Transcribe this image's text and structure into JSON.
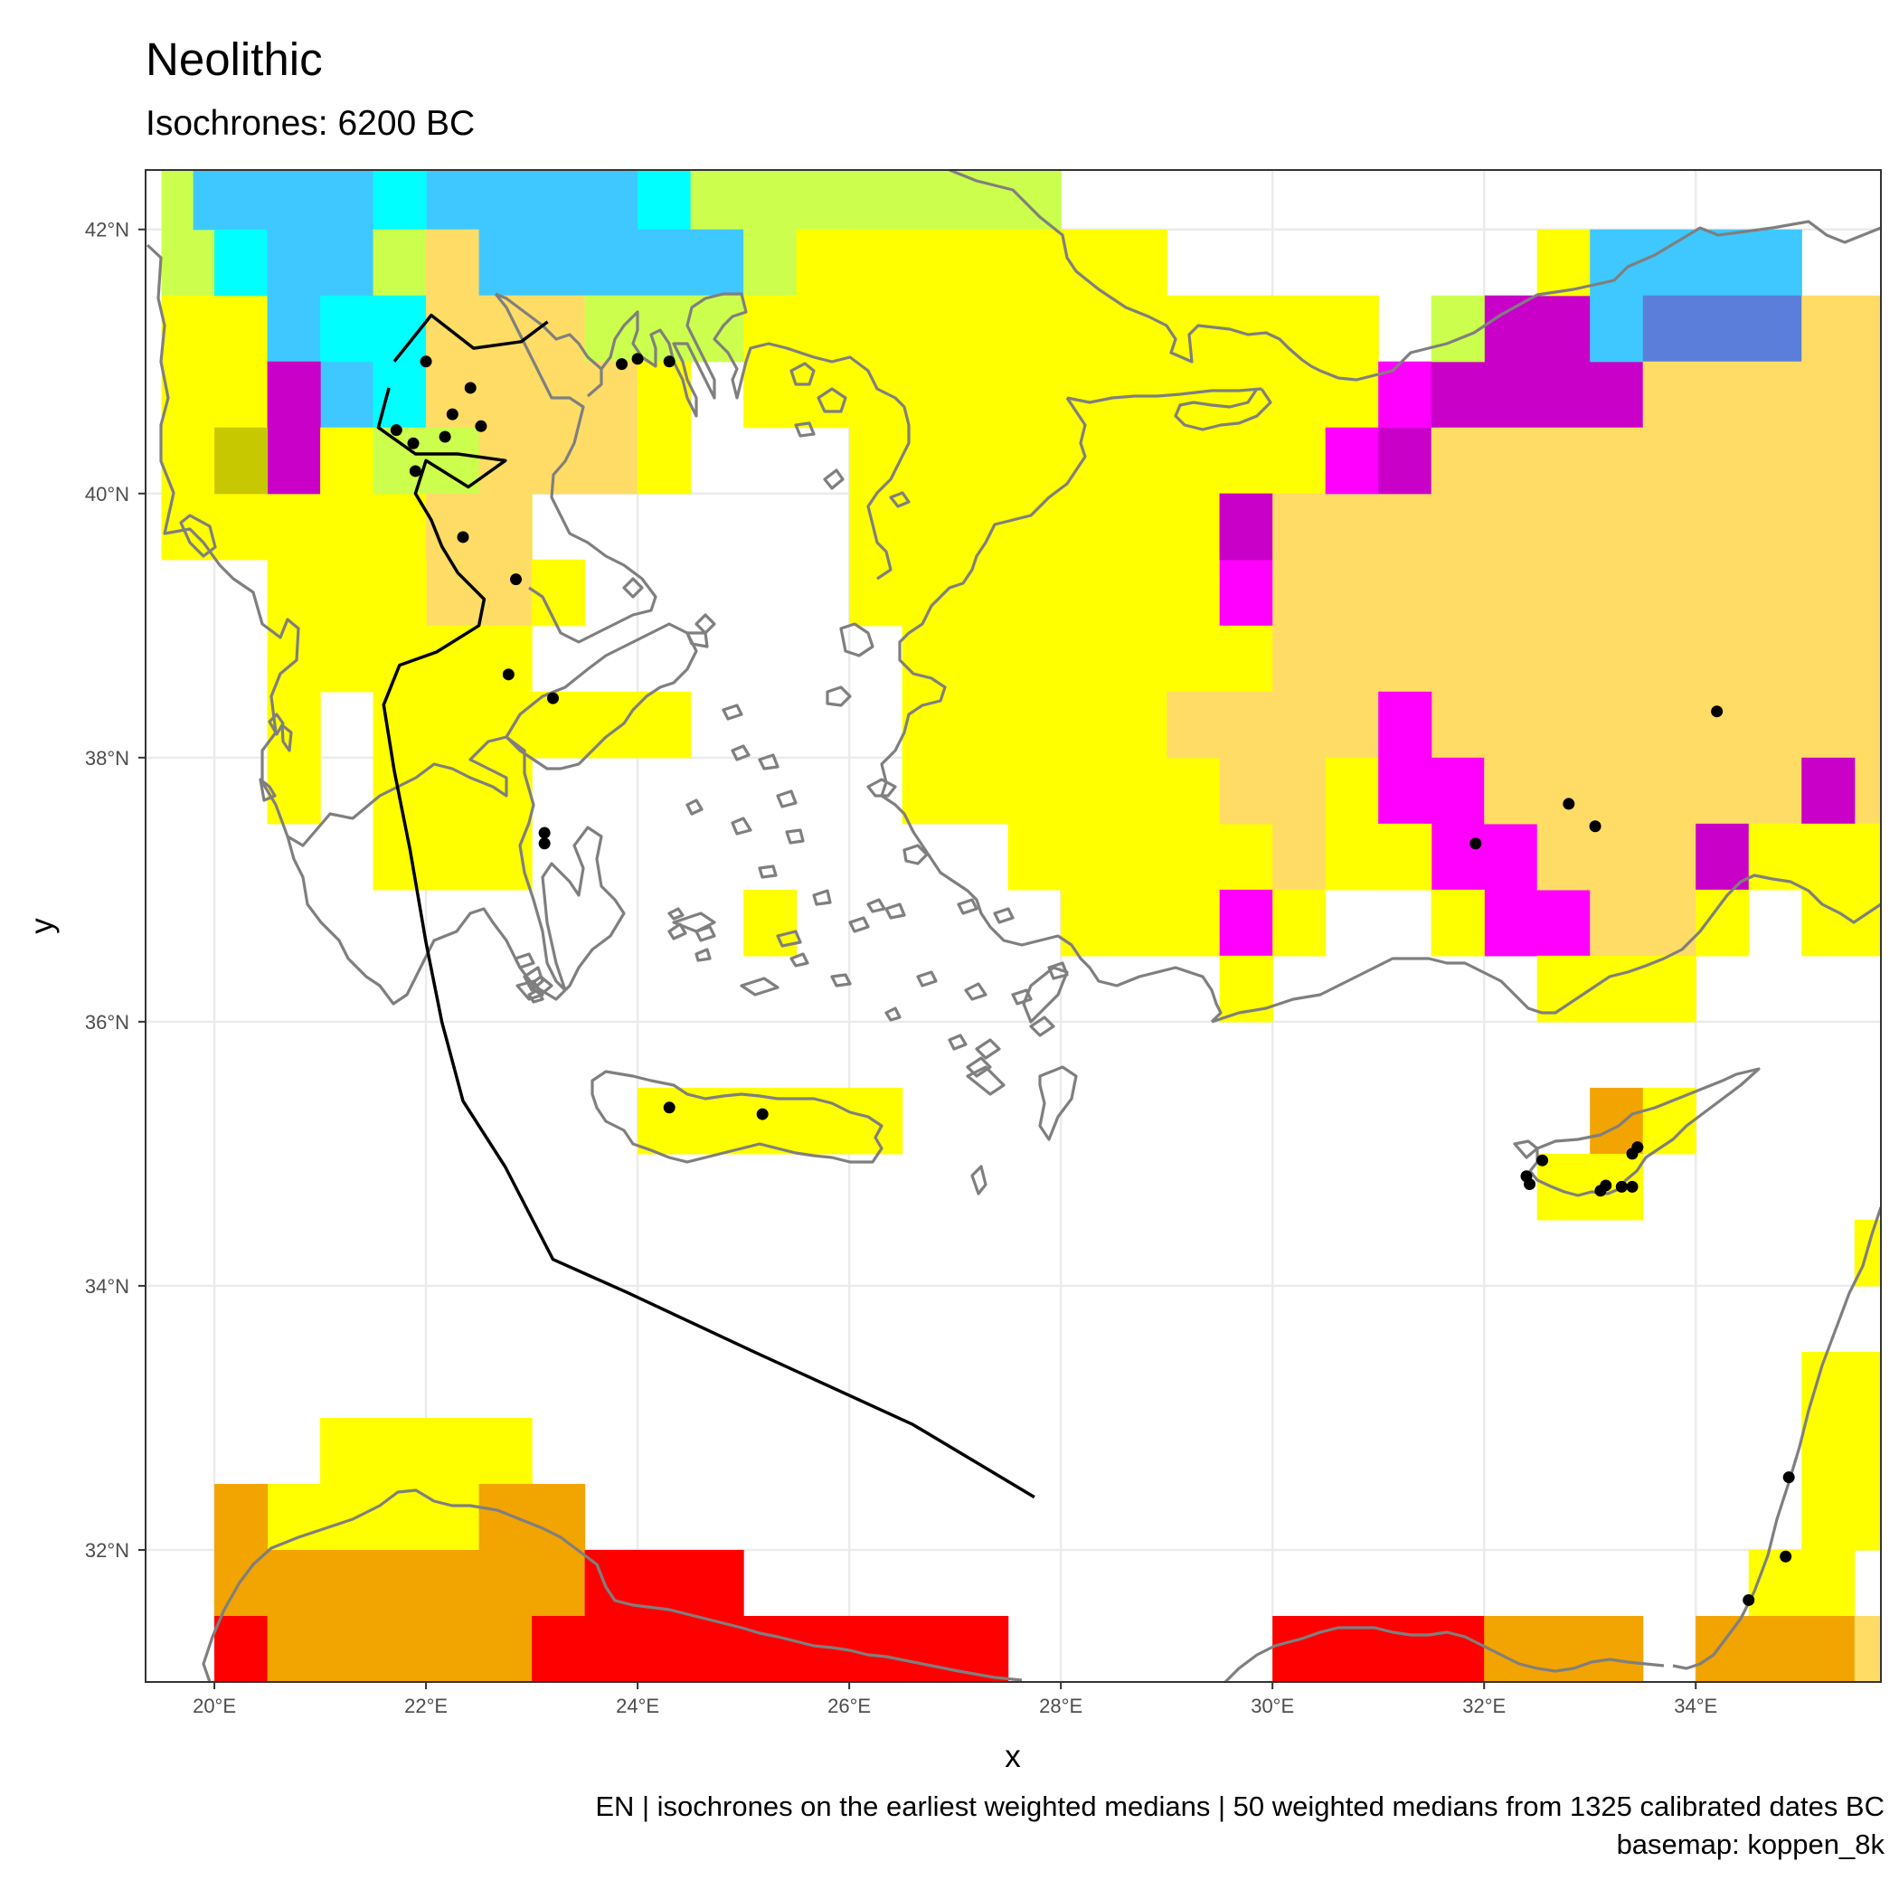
{
  "title": "Neolithic",
  "subtitle": "Isochrones: 6200 BC",
  "caption": {
    "line1": "EN | isochrones on the earliest weighted medians | 50 weighted medians from 1325 calibrated dates BC",
    "line2": "basemap: koppen_8k"
  },
  "axes": {
    "x_title": "x",
    "y_title": "y",
    "x_ticks": [
      "20°E",
      "22°E",
      "24°E",
      "26°E",
      "28°E",
      "30°E",
      "32°E",
      "34°E"
    ],
    "y_ticks": [
      "42°N",
      "40°N",
      "38°N",
      "36°N",
      "34°N",
      "32°N"
    ],
    "xlim": [
      19.35,
      35.75
    ],
    "ylim": [
      31.0,
      42.45
    ]
  },
  "colors": {
    "panel_border": "#333333",
    "grid": "#ebebeb",
    "coast": "#7f7f7f",
    "isochrone": "#000000",
    "sites": "#000000"
  },
  "chart_data": {
    "type": "heatmap",
    "cell_size_deg": 0.5,
    "legend": "none",
    "grid": true,
    "climate_colors": {
      "A": "#ff0000",
      "B": "#f2a400",
      "C": "#ffdc66",
      "D": "#ffff00",
      "E": "#ccff4d",
      "F": "#c8c800",
      "G": "#3fc8ff",
      "H": "#00ffff",
      "I": "#c800c8",
      "J": "#ff00ff",
      "K": "#5a7ed9"
    },
    "cells": [
      {
        "lon": 19.5,
        "lat": 42.0,
        "w": 0.5,
        "h": 0.5,
        "c": "E"
      },
      {
        "lon": 19.5,
        "lat": 41.5,
        "w": 1.0,
        "h": 0.5,
        "c": "E"
      },
      {
        "lon": 19.5,
        "lat": 40.0,
        "w": 1.0,
        "h": 1.5,
        "c": "D"
      },
      {
        "lon": 19.5,
        "lat": 39.5,
        "w": 3.5,
        "h": 0.5,
        "c": "D"
      },
      {
        "lon": 19.8,
        "lat": 42.0,
        "w": 2.2,
        "h": 0.5,
        "c": "G"
      },
      {
        "lon": 22.0,
        "lat": 42.0,
        "w": 2.0,
        "h": 0.5,
        "c": "G"
      },
      {
        "lon": 21.5,
        "lat": 42.0,
        "w": 0.5,
        "h": 0.5,
        "c": "H"
      },
      {
        "lon": 24.0,
        "lat": 42.0,
        "w": 0.5,
        "h": 0.5,
        "c": "H"
      },
      {
        "lon": 24.5,
        "lat": 42.0,
        "w": 3.5,
        "h": 0.5,
        "c": "E"
      },
      {
        "lon": 20.0,
        "lat": 41.5,
        "w": 0.5,
        "h": 0.5,
        "c": "H"
      },
      {
        "lon": 20.5,
        "lat": 41.0,
        "w": 0.5,
        "h": 1.0,
        "c": "G"
      },
      {
        "lon": 21.0,
        "lat": 41.5,
        "w": 0.5,
        "h": 0.5,
        "c": "G"
      },
      {
        "lon": 21.5,
        "lat": 41.5,
        "w": 0.5,
        "h": 0.5,
        "c": "E"
      },
      {
        "lon": 22.0,
        "lat": 41.5,
        "w": 0.5,
        "h": 0.5,
        "c": "C"
      },
      {
        "lon": 22.5,
        "lat": 41.5,
        "w": 2.5,
        "h": 0.5,
        "c": "G"
      },
      {
        "lon": 25.0,
        "lat": 41.5,
        "w": 0.5,
        "h": 0.5,
        "c": "E"
      },
      {
        "lon": 25.5,
        "lat": 41.5,
        "w": 2.5,
        "h": 0.5,
        "c": "D"
      },
      {
        "lon": 21.0,
        "lat": 40.5,
        "w": 0.5,
        "h": 1.0,
        "c": "G"
      },
      {
        "lon": 21.0,
        "lat": 41.0,
        "w": 1.0,
        "h": 0.5,
        "c": "H"
      },
      {
        "lon": 21.5,
        "lat": 40.5,
        "w": 0.5,
        "h": 0.5,
        "c": "H"
      },
      {
        "lon": 22.0,
        "lat": 40.5,
        "w": 1.5,
        "h": 1.0,
        "c": "C"
      },
      {
        "lon": 23.5,
        "lat": 41.0,
        "w": 1.5,
        "h": 0.5,
        "c": "E"
      },
      {
        "lon": 23.5,
        "lat": 40.5,
        "w": 1.0,
        "h": 0.5,
        "c": "C"
      },
      {
        "lon": 25.0,
        "lat": 40.5,
        "w": 3.0,
        "h": 1.0,
        "c": "D"
      },
      {
        "lon": 28.0,
        "lat": 40.5,
        "w": 1.0,
        "h": 1.0,
        "c": "D"
      },
      {
        "lon": 20.5,
        "lat": 40.0,
        "w": 0.5,
        "h": 1.0,
        "c": "I"
      },
      {
        "lon": 20.0,
        "lat": 40.0,
        "w": 0.5,
        "h": 0.5,
        "c": "F"
      },
      {
        "lon": 21.0,
        "lat": 40.0,
        "w": 0.5,
        "h": 0.5,
        "c": "D"
      },
      {
        "lon": 21.5,
        "lat": 40.0,
        "w": 1.0,
        "h": 0.5,
        "c": "E"
      },
      {
        "lon": 22.5,
        "lat": 40.0,
        "w": 1.5,
        "h": 0.5,
        "c": "C"
      },
      {
        "lon": 24.0,
        "lat": 40.0,
        "w": 0.5,
        "h": 1.0,
        "c": "D"
      },
      {
        "lon": 22.0,
        "lat": 39.0,
        "w": 1.0,
        "h": 1.0,
        "c": "C"
      },
      {
        "lon": 23.0,
        "lat": 39.0,
        "w": 0.5,
        "h": 0.5,
        "c": "D"
      },
      {
        "lon": 20.5,
        "lat": 38.5,
        "w": 1.5,
        "h": 1.0,
        "c": "D"
      },
      {
        "lon": 22.0,
        "lat": 38.5,
        "w": 1.0,
        "h": 0.5,
        "c": "D"
      },
      {
        "lon": 20.5,
        "lat": 37.5,
        "w": 0.5,
        "h": 1.0,
        "c": "D"
      },
      {
        "lon": 21.5,
        "lat": 37.0,
        "w": 1.5,
        "h": 1.5,
        "c": "D"
      },
      {
        "lon": 23.0,
        "lat": 38.0,
        "w": 1.5,
        "h": 0.5,
        "c": "D"
      },
      {
        "lon": 25.0,
        "lat": 36.5,
        "w": 0.5,
        "h": 0.5,
        "c": "D"
      },
      {
        "lon": 26.0,
        "lat": 39.0,
        "w": 3.0,
        "h": 3.0,
        "c": "D"
      },
      {
        "lon": 26.5,
        "lat": 37.5,
        "w": 2.5,
        "h": 1.5,
        "c": "D"
      },
      {
        "lon": 27.5,
        "lat": 37.0,
        "w": 1.5,
        "h": 0.5,
        "c": "D"
      },
      {
        "lon": 28.0,
        "lat": 36.5,
        "w": 1.5,
        "h": 0.5,
        "c": "D"
      },
      {
        "lon": 29.0,
        "lat": 38.5,
        "w": 1.0,
        "h": 2.5,
        "c": "D"
      },
      {
        "lon": 29.0,
        "lat": 37.0,
        "w": 1.0,
        "h": 1.5,
        "c": "D"
      },
      {
        "lon": 29.0,
        "lat": 41.0,
        "w": 2.0,
        "h": 0.5,
        "c": "D"
      },
      {
        "lon": 29.0,
        "lat": 40.5,
        "w": 1.0,
        "h": 0.5,
        "c": "D"
      },
      {
        "lon": 29.0,
        "lat": 40.0,
        "w": 2.0,
        "h": 0.5,
        "c": "D"
      },
      {
        "lon": 30.0,
        "lat": 40.5,
        "w": 1.0,
        "h": 0.5,
        "c": "D"
      },
      {
        "lon": 31.0,
        "lat": 40.5,
        "w": 0.5,
        "h": 0.5,
        "c": "D"
      },
      {
        "lon": 30.0,
        "lat": 39.5,
        "w": 0.5,
        "h": 0.5,
        "c": "D"
      },
      {
        "lon": 29.5,
        "lat": 39.0,
        "w": 0.5,
        "h": 1.0,
        "c": "J"
      },
      {
        "lon": 29.5,
        "lat": 39.5,
        "w": 0.5,
        "h": 0.5,
        "c": "I"
      },
      {
        "lon": 29.0,
        "lat": 38.5,
        "w": 0.5,
        "h": 0.5,
        "c": "D"
      },
      {
        "lon": 29.5,
        "lat": 38.5,
        "w": 0.5,
        "h": 0.5,
        "c": "D"
      },
      {
        "lon": 30.0,
        "lat": 38.0,
        "w": 1.5,
        "h": 2.0,
        "c": "C"
      },
      {
        "lon": 29.0,
        "lat": 38.0,
        "w": 1.5,
        "h": 0.5,
        "c": "C"
      },
      {
        "lon": 29.5,
        "lat": 37.5,
        "w": 1.0,
        "h": 0.5,
        "c": "C"
      },
      {
        "lon": 30.0,
        "lat": 37.0,
        "w": 0.5,
        "h": 0.5,
        "c": "C"
      },
      {
        "lon": 30.5,
        "lat": 37.0,
        "w": 1.0,
        "h": 1.0,
        "c": "D"
      },
      {
        "lon": 29.5,
        "lat": 36.5,
        "w": 0.5,
        "h": 0.5,
        "c": "J"
      },
      {
        "lon": 30.0,
        "lat": 36.5,
        "w": 0.5,
        "h": 0.5,
        "c": "D"
      },
      {
        "lon": 29.5,
        "lat": 36.0,
        "w": 0.5,
        "h": 0.5,
        "c": "D"
      },
      {
        "lon": 30.5,
        "lat": 40.0,
        "w": 0.5,
        "h": 0.5,
        "c": "J"
      },
      {
        "lon": 31.0,
        "lat": 40.0,
        "w": 0.5,
        "h": 0.5,
        "c": "I"
      },
      {
        "lon": 31.0,
        "lat": 40.5,
        "w": 0.5,
        "h": 0.5,
        "c": "J"
      },
      {
        "lon": 31.5,
        "lat": 40.5,
        "w": 2.0,
        "h": 0.5,
        "c": "I"
      },
      {
        "lon": 32.0,
        "lat": 41.0,
        "w": 1.0,
        "h": 0.5,
        "c": "I"
      },
      {
        "lon": 31.5,
        "lat": 41.0,
        "w": 0.5,
        "h": 0.5,
        "c": "E"
      },
      {
        "lon": 32.5,
        "lat": 41.5,
        "w": 0.5,
        "h": 0.5,
        "c": "D"
      },
      {
        "lon": 33.0,
        "lat": 41.0,
        "w": 0.5,
        "h": 1.0,
        "c": "G"
      },
      {
        "lon": 33.5,
        "lat": 41.5,
        "w": 1.5,
        "h": 0.5,
        "c": "G"
      },
      {
        "lon": 33.5,
        "lat": 41.0,
        "w": 1.5,
        "h": 0.5,
        "c": "K"
      },
      {
        "lon": 35.0,
        "lat": 40.5,
        "w": 0.75,
        "h": 1.0,
        "c": "C"
      },
      {
        "lon": 31.5,
        "lat": 38.0,
        "w": 4.25,
        "h": 2.5,
        "c": "C"
      },
      {
        "lon": 33.5,
        "lat": 40.5,
        "w": 1.5,
        "h": 0.5,
        "c": "C"
      },
      {
        "lon": 31.0,
        "lat": 37.5,
        "w": 0.5,
        "h": 1.0,
        "c": "J"
      },
      {
        "lon": 31.5,
        "lat": 37.0,
        "w": 0.5,
        "h": 1.0,
        "c": "J"
      },
      {
        "lon": 32.0,
        "lat": 36.5,
        "w": 0.5,
        "h": 1.0,
        "c": "J"
      },
      {
        "lon": 32.5,
        "lat": 36.5,
        "w": 0.5,
        "h": 0.5,
        "c": "J"
      },
      {
        "lon": 32.0,
        "lat": 37.5,
        "w": 2.0,
        "h": 0.5,
        "c": "C"
      },
      {
        "lon": 32.5,
        "lat": 37.0,
        "w": 1.5,
        "h": 0.5,
        "c": "C"
      },
      {
        "lon": 33.0,
        "lat": 36.5,
        "w": 1.0,
        "h": 0.5,
        "c": "C"
      },
      {
        "lon": 34.0,
        "lat": 37.5,
        "w": 1.0,
        "h": 0.5,
        "c": "C"
      },
      {
        "lon": 35.5,
        "lat": 37.5,
        "w": 0.25,
        "h": 0.5,
        "c": "C"
      },
      {
        "lon": 35.0,
        "lat": 37.5,
        "w": 0.5,
        "h": 0.5,
        "c": "I"
      },
      {
        "lon": 34.0,
        "lat": 37.0,
        "w": 0.5,
        "h": 0.5,
        "c": "I"
      },
      {
        "lon": 34.5,
        "lat": 37.0,
        "w": 1.25,
        "h": 0.5,
        "c": "D"
      },
      {
        "lon": 34.0,
        "lat": 36.5,
        "w": 0.5,
        "h": 0.5,
        "c": "D"
      },
      {
        "lon": 35.0,
        "lat": 36.5,
        "w": 0.75,
        "h": 0.5,
        "c": "D"
      },
      {
        "lon": 31.0,
        "lat": 37.0,
        "w": 0.5,
        "h": 0.5,
        "c": "D"
      },
      {
        "lon": 31.5,
        "lat": 36.5,
        "w": 0.5,
        "h": 0.5,
        "c": "D"
      },
      {
        "lon": 32.5,
        "lat": 36.0,
        "w": 1.5,
        "h": 0.5,
        "c": "D"
      },
      {
        "lon": 24.0,
        "lat": 35.0,
        "w": 2.5,
        "h": 0.5,
        "c": "D"
      },
      {
        "lon": 33.0,
        "lat": 35.0,
        "w": 0.5,
        "h": 0.5,
        "c": "B"
      },
      {
        "lon": 33.5,
        "lat": 35.0,
        "w": 0.5,
        "h": 0.5,
        "c": "D"
      },
      {
        "lon": 32.5,
        "lat": 34.5,
        "w": 1.0,
        "h": 0.5,
        "c": "D"
      },
      {
        "lon": 35.5,
        "lat": 34.0,
        "w": 0.25,
        "h": 0.5,
        "c": "D"
      },
      {
        "lon": 35.0,
        "lat": 32.0,
        "w": 0.75,
        "h": 1.5,
        "c": "D"
      },
      {
        "lon": 34.5,
        "lat": 31.5,
        "w": 0.5,
        "h": 0.5,
        "c": "D"
      },
      {
        "lon": 35.0,
        "lat": 31.5,
        "w": 0.5,
        "h": 0.5,
        "c": "D"
      },
      {
        "lon": 34.0,
        "lat": 31.0,
        "w": 1.5,
        "h": 0.5,
        "c": "B"
      },
      {
        "lon": 35.5,
        "lat": 31.0,
        "w": 0.25,
        "h": 0.5,
        "c": "C"
      },
      {
        "lon": 21.0,
        "lat": 32.5,
        "w": 2.0,
        "h": 0.5,
        "c": "D"
      },
      {
        "lon": 20.5,
        "lat": 32.0,
        "w": 2.0,
        "h": 0.5,
        "c": "D"
      },
      {
        "lon": 20.0,
        "lat": 32.0,
        "w": 0.5,
        "h": 0.5,
        "c": "B"
      },
      {
        "lon": 22.5,
        "lat": 32.0,
        "w": 1.0,
        "h": 0.5,
        "c": "B"
      },
      {
        "lon": 20.0,
        "lat": 31.5,
        "w": 3.5,
        "h": 0.5,
        "c": "B"
      },
      {
        "lon": 23.5,
        "lat": 31.5,
        "w": 1.5,
        "h": 0.5,
        "c": "A"
      },
      {
        "lon": 20.0,
        "lat": 31.0,
        "w": 0.5,
        "h": 0.5,
        "c": "A"
      },
      {
        "lon": 20.5,
        "lat": 31.0,
        "w": 2.5,
        "h": 0.5,
        "c": "B"
      },
      {
        "lon": 23.0,
        "lat": 31.0,
        "w": 4.5,
        "h": 0.5,
        "c": "A"
      },
      {
        "lon": 30.0,
        "lat": 31.0,
        "w": 2.0,
        "h": 0.5,
        "c": "A"
      },
      {
        "lon": 32.0,
        "lat": 31.0,
        "w": 1.5,
        "h": 0.5,
        "c": "B"
      }
    ],
    "isochrone": [
      [
        21.7,
        41.0
      ],
      [
        22.05,
        41.35
      ],
      [
        22.45,
        41.1
      ],
      [
        22.9,
        41.15
      ],
      [
        23.15,
        41.3
      ],
      [
        null,
        null
      ],
      [
        21.65,
        40.8
      ],
      [
        21.55,
        40.5
      ],
      [
        21.9,
        40.3
      ],
      [
        22.3,
        40.3
      ],
      [
        22.75,
        40.25
      ],
      [
        22.4,
        40.05
      ],
      [
        22.0,
        40.25
      ],
      [
        21.9,
        40.0
      ],
      [
        22.05,
        39.8
      ],
      [
        22.15,
        39.6
      ],
      [
        22.3,
        39.4
      ],
      [
        22.55,
        39.2
      ],
      [
        22.5,
        39.0
      ],
      [
        22.1,
        38.8
      ],
      [
        21.75,
        38.7
      ],
      [
        21.6,
        38.4
      ],
      [
        21.7,
        37.9
      ],
      [
        21.85,
        37.3
      ],
      [
        22.0,
        36.6
      ],
      [
        22.15,
        36.0
      ],
      [
        22.35,
        35.4
      ],
      [
        22.75,
        34.9
      ],
      [
        23.2,
        34.2
      ],
      [
        23.9,
        33.95
      ],
      [
        25.1,
        33.5
      ],
      [
        26.6,
        32.95
      ],
      [
        27.75,
        32.4
      ]
    ],
    "sites": [
      [
        22.0,
        41.0
      ],
      [
        23.85,
        40.98
      ],
      [
        24.0,
        41.02
      ],
      [
        24.3,
        41.0
      ],
      [
        22.42,
        40.8
      ],
      [
        22.25,
        40.6
      ],
      [
        21.72,
        40.48
      ],
      [
        22.18,
        40.43
      ],
      [
        22.52,
        40.51
      ],
      [
        21.88,
        40.38
      ],
      [
        21.9,
        40.17
      ],
      [
        22.35,
        39.67
      ],
      [
        22.85,
        39.35
      ],
      [
        22.78,
        38.63
      ],
      [
        23.2,
        38.45
      ],
      [
        23.12,
        37.43
      ],
      [
        23.12,
        37.35
      ],
      [
        24.3,
        35.35
      ],
      [
        25.18,
        35.3
      ],
      [
        34.2,
        38.35
      ],
      [
        32.8,
        37.65
      ],
      [
        33.05,
        37.48
      ],
      [
        31.92,
        37.35
      ],
      [
        33.45,
        35.05
      ],
      [
        33.4,
        35.0
      ],
      [
        32.55,
        34.95
      ],
      [
        32.4,
        34.83
      ],
      [
        32.43,
        34.77
      ],
      [
        33.15,
        34.76
      ],
      [
        33.1,
        34.72
      ],
      [
        33.3,
        34.75
      ],
      [
        33.4,
        34.75
      ],
      [
        34.88,
        32.55
      ],
      [
        34.85,
        31.95
      ],
      [
        34.5,
        31.62
      ]
    ],
    "coastline_shown": true
  }
}
